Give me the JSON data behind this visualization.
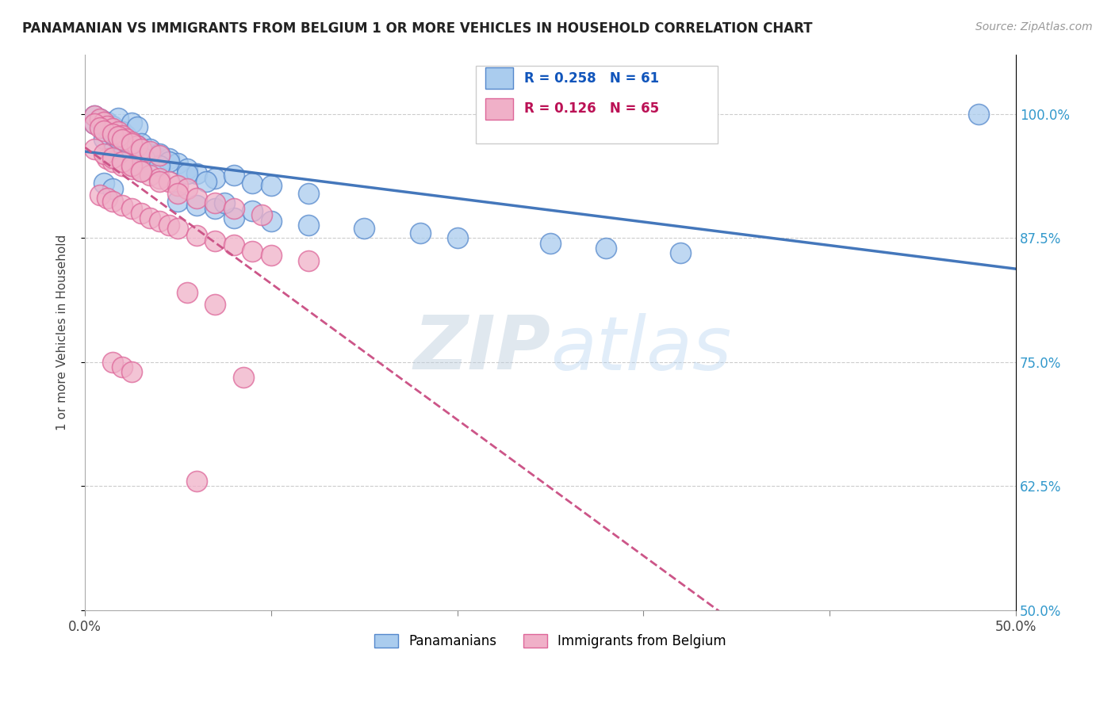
{
  "title": "PANAMANIAN VS IMMIGRANTS FROM BELGIUM 1 OR MORE VEHICLES IN HOUSEHOLD CORRELATION CHART",
  "source": "Source: ZipAtlas.com",
  "ylabel": "1 or more Vehicles in Household",
  "ytick_labels": [
    "100.0%",
    "87.5%",
    "75.0%",
    "62.5%",
    "50.0%"
  ],
  "ytick_values": [
    1.0,
    0.875,
    0.75,
    0.625,
    0.5
  ],
  "xlim": [
    0.0,
    0.5
  ],
  "ylim": [
    0.5,
    1.06
  ],
  "r_panama": 0.258,
  "n_panama": 61,
  "r_belgium": 0.126,
  "n_belgium": 65,
  "panama_color": "#aaccee",
  "belgium_color": "#f0b0c8",
  "panama_edge_color": "#5588cc",
  "belgium_edge_color": "#dd6699",
  "panama_line_color": "#4477bb",
  "belgium_line_color": "#cc5588",
  "watermark_color": "#ddeeff",
  "pan_x": [
    0.005,
    0.008,
    0.01,
    0.012,
    0.015,
    0.018,
    0.02,
    0.022,
    0.025,
    0.028,
    0.01,
    0.015,
    0.02,
    0.025,
    0.03,
    0.035,
    0.04,
    0.045,
    0.05,
    0.055,
    0.03,
    0.035,
    0.04,
    0.045,
    0.06,
    0.07,
    0.08,
    0.09,
    0.1,
    0.12,
    0.015,
    0.02,
    0.025,
    0.03,
    0.05,
    0.06,
    0.07,
    0.08,
    0.1,
    0.12,
    0.15,
    0.18,
    0.2,
    0.25,
    0.28,
    0.32,
    0.01,
    0.015,
    0.005,
    0.008,
    0.012,
    0.018,
    0.022,
    0.028,
    0.032,
    0.04,
    0.055,
    0.065,
    0.075,
    0.09,
    0.48
  ],
  "pan_y": [
    0.99,
    0.995,
    0.985,
    0.992,
    0.988,
    0.996,
    0.982,
    0.978,
    0.991,
    0.987,
    0.975,
    0.98,
    0.972,
    0.968,
    0.965,
    0.96,
    0.958,
    0.955,
    0.95,
    0.945,
    0.97,
    0.965,
    0.96,
    0.952,
    0.94,
    0.935,
    0.938,
    0.93,
    0.928,
    0.92,
    0.962,
    0.958,
    0.948,
    0.942,
    0.912,
    0.908,
    0.905,
    0.895,
    0.892,
    0.888,
    0.885,
    0.88,
    0.875,
    0.87,
    0.865,
    0.86,
    0.93,
    0.925,
    0.998,
    0.993,
    0.985,
    0.975,
    0.972,
    0.968,
    0.955,
    0.948,
    0.94,
    0.932,
    0.91,
    0.902,
    1.0
  ],
  "bel_x": [
    0.005,
    0.008,
    0.01,
    0.012,
    0.015,
    0.018,
    0.02,
    0.022,
    0.025,
    0.028,
    0.005,
    0.008,
    0.01,
    0.015,
    0.018,
    0.02,
    0.025,
    0.03,
    0.035,
    0.04,
    0.012,
    0.015,
    0.02,
    0.025,
    0.03,
    0.035,
    0.04,
    0.045,
    0.05,
    0.055,
    0.008,
    0.012,
    0.015,
    0.02,
    0.025,
    0.03,
    0.035,
    0.04,
    0.045,
    0.05,
    0.06,
    0.07,
    0.08,
    0.09,
    0.1,
    0.12,
    0.005,
    0.01,
    0.015,
    0.02,
    0.025,
    0.03,
    0.04,
    0.05,
    0.06,
    0.07,
    0.08,
    0.095,
    0.055,
    0.07,
    0.015,
    0.02,
    0.025,
    0.085,
    0.06
  ],
  "bel_y": [
    0.998,
    0.995,
    0.992,
    0.988,
    0.985,
    0.982,
    0.978,
    0.975,
    0.972,
    0.968,
    0.99,
    0.986,
    0.983,
    0.98,
    0.977,
    0.974,
    0.97,
    0.965,
    0.962,
    0.958,
    0.955,
    0.952,
    0.948,
    0.945,
    0.942,
    0.938,
    0.935,
    0.932,
    0.928,
    0.925,
    0.918,
    0.915,
    0.912,
    0.908,
    0.905,
    0.9,
    0.895,
    0.892,
    0.888,
    0.885,
    0.878,
    0.872,
    0.868,
    0.862,
    0.858,
    0.852,
    0.965,
    0.96,
    0.956,
    0.952,
    0.948,
    0.942,
    0.932,
    0.92,
    0.915,
    0.91,
    0.905,
    0.898,
    0.82,
    0.808,
    0.75,
    0.745,
    0.74,
    0.735,
    0.63
  ]
}
